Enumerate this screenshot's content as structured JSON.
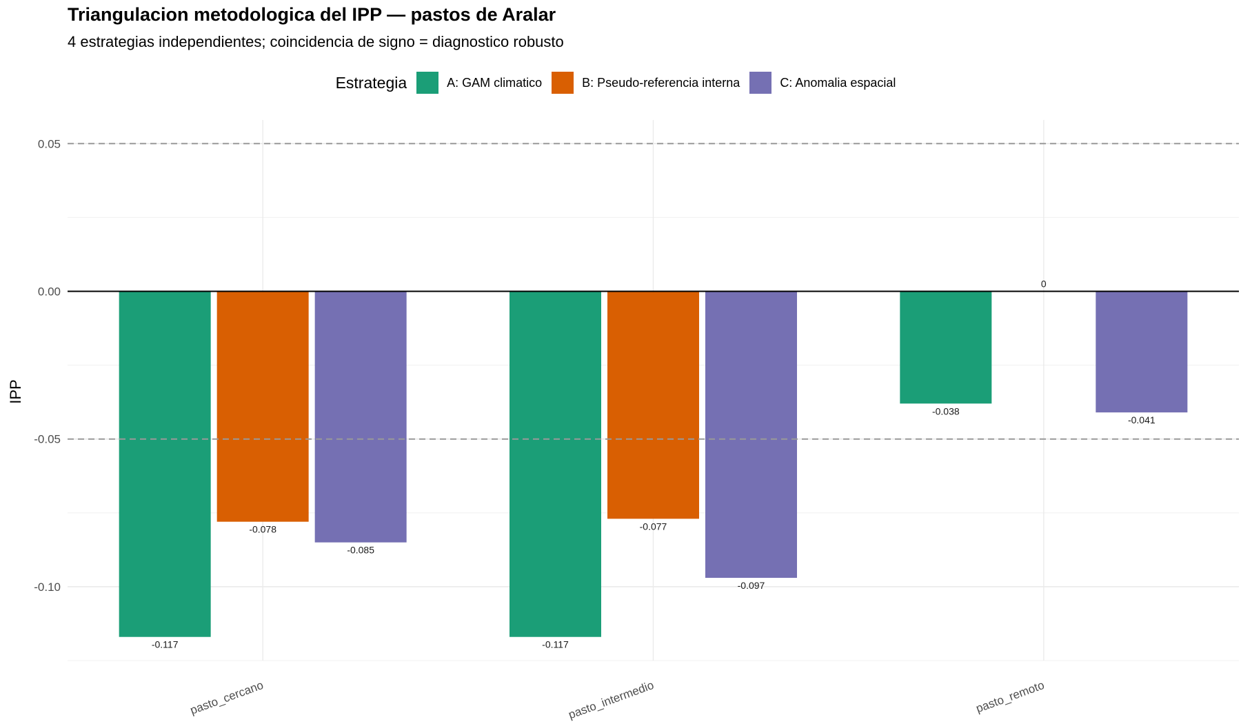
{
  "chart_data": {
    "type": "bar",
    "title": "Triangulacion metodologica del IPP — pastos de Aralar",
    "subtitle": "4 estrategias independientes; coincidencia de signo = diagnostico robusto",
    "xlabel": "",
    "ylabel": "IPP",
    "categories": [
      "pasto_cercano",
      "pasto_intermedio",
      "pasto_remoto"
    ],
    "series": [
      {
        "name": "A: GAM climatico",
        "color": "#1b9e77",
        "values": [
          -0.117,
          -0.117,
          -0.038
        ],
        "labels": [
          "-0.117",
          "-0.117",
          "-0.038"
        ]
      },
      {
        "name": "B: Pseudo-referencia interna",
        "color": "#d95f02",
        "values": [
          -0.078,
          -0.077,
          0
        ],
        "labels": [
          "-0.078",
          "-0.077",
          "0"
        ]
      },
      {
        "name": "C: Anomalia espacial",
        "color": "#7570b3",
        "values": [
          -0.085,
          -0.097,
          -0.041
        ],
        "labels": [
          "-0.085",
          "-0.097",
          "-0.041"
        ]
      }
    ],
    "ylim": [
      -0.125,
      0.058
    ],
    "yticks": [
      "0.05",
      "0.00",
      "-0.05",
      "-0.10"
    ],
    "ytick_values": [
      0.05,
      0,
      -0.05,
      -0.1
    ],
    "reference_lines": [
      0.05,
      -0.05
    ],
    "zero_line": 0,
    "grid": true,
    "legend": {
      "title": "Estrategia",
      "position": "top"
    }
  }
}
